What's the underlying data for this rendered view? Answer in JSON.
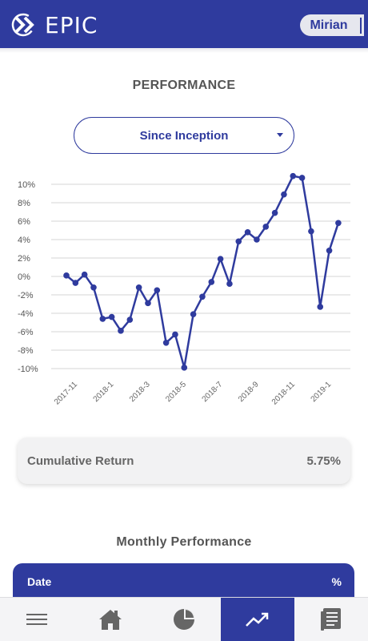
{
  "header": {
    "logo_text": "EPIC",
    "user_name": "Mirian"
  },
  "performance": {
    "title": "PERFORMANCE",
    "period_selected": "Since Inception"
  },
  "chart_data": {
    "type": "line",
    "x": [
      "2017-11",
      "2017-11b",
      "2017-12",
      "2017-12b",
      "2018-1",
      "2018-1b",
      "2018-2",
      "2018-2b",
      "2018-3",
      "2018-3b",
      "2018-4",
      "2018-4b",
      "2018-5",
      "2018-5b",
      "2018-6",
      "2018-6b",
      "2018-7",
      "2018-7b",
      "2018-8",
      "2018-8b",
      "2018-9",
      "2018-9b",
      "2018-10",
      "2018-10b",
      "2018-11",
      "2018-11b",
      "2018-12",
      "2018-12b",
      "2019-1",
      "2019-1b",
      "2019-2"
    ],
    "values": [
      0.1,
      -0.7,
      0.2,
      -1.2,
      -4.6,
      -4.4,
      -5.9,
      -4.7,
      -1.2,
      -2.9,
      -1.5,
      -7.2,
      -6.3,
      -9.9,
      -4.1,
      -2.2,
      -0.6,
      1.9,
      -0.8,
      3.8,
      4.8,
      4.0,
      5.4,
      6.9,
      8.9,
      10.9,
      10.7,
      4.9,
      -3.3,
      2.8,
      5.8
    ],
    "tick_labels": [
      "2017-11",
      "2018-1",
      "2018-3",
      "2018-5",
      "2018-7",
      "2018-9",
      "2018-11",
      "2019-1"
    ],
    "y_ticks": [
      "10%",
      "8%",
      "6%",
      "4%",
      "2%",
      "0%",
      "-2%",
      "-4%",
      "-6%",
      "-8%",
      "-10%"
    ],
    "ylim": [
      -10,
      10
    ],
    "grid": true,
    "color": "#2f3b9e"
  },
  "cumulative": {
    "label": "Cumulative Return",
    "value": "5.75%"
  },
  "monthly": {
    "title": "Monthly Performance",
    "col_date": "Date",
    "col_pct": "%"
  },
  "nav": {
    "items": [
      "menu-icon",
      "home-icon",
      "pie-chart-icon",
      "trend-icon",
      "report-icon"
    ],
    "active_index": 3
  },
  "colors": {
    "brand": "#2f3b9e"
  }
}
